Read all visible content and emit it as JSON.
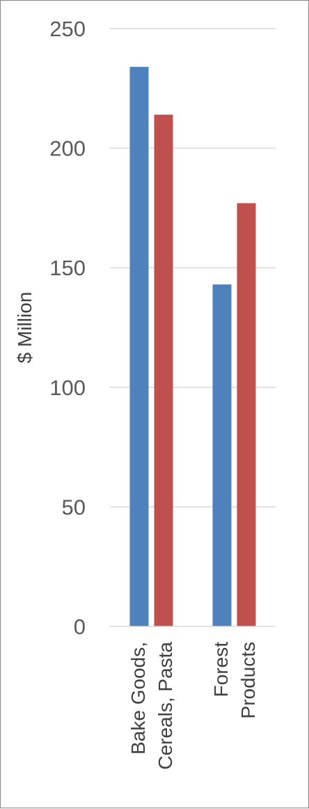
{
  "chart_data": {
    "type": "bar",
    "categories": [
      [
        "Bake Goods,",
        "Cereals, Pasta"
      ],
      [
        "Forest",
        "Products"
      ]
    ],
    "series": [
      {
        "values": [
          234,
          143
        ],
        "color": "#4F81BD"
      },
      {
        "values": [
          214,
          177
        ],
        "color": "#C0504D"
      }
    ],
    "ylabel": "$ Million",
    "ylim": [
      0,
      250
    ],
    "yticks": [
      0,
      50,
      100,
      150,
      200,
      250
    ],
    "grid": true,
    "legend": "none"
  }
}
